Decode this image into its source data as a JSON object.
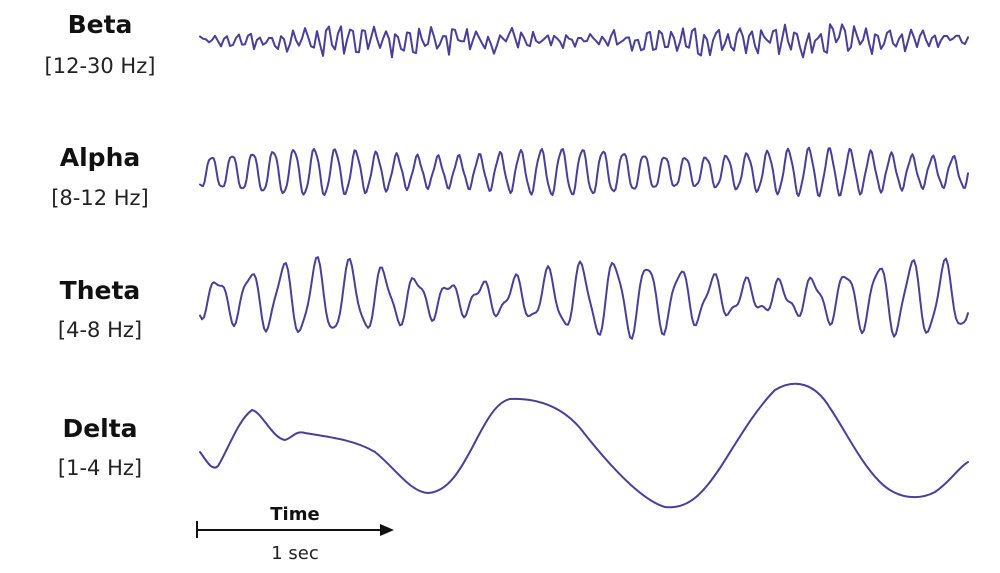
{
  "bands": [
    {
      "name": "Beta",
      "range": "[12-30 Hz]"
    },
    {
      "name": "Alpha",
      "range": "[8-12 Hz]"
    },
    {
      "name": "Theta",
      "range": "[4-8 Hz]"
    },
    {
      "name": "Delta",
      "range": "[1-4 Hz]"
    }
  ],
  "time_axis": {
    "label": "Time",
    "scale": "1 sec"
  }
}
